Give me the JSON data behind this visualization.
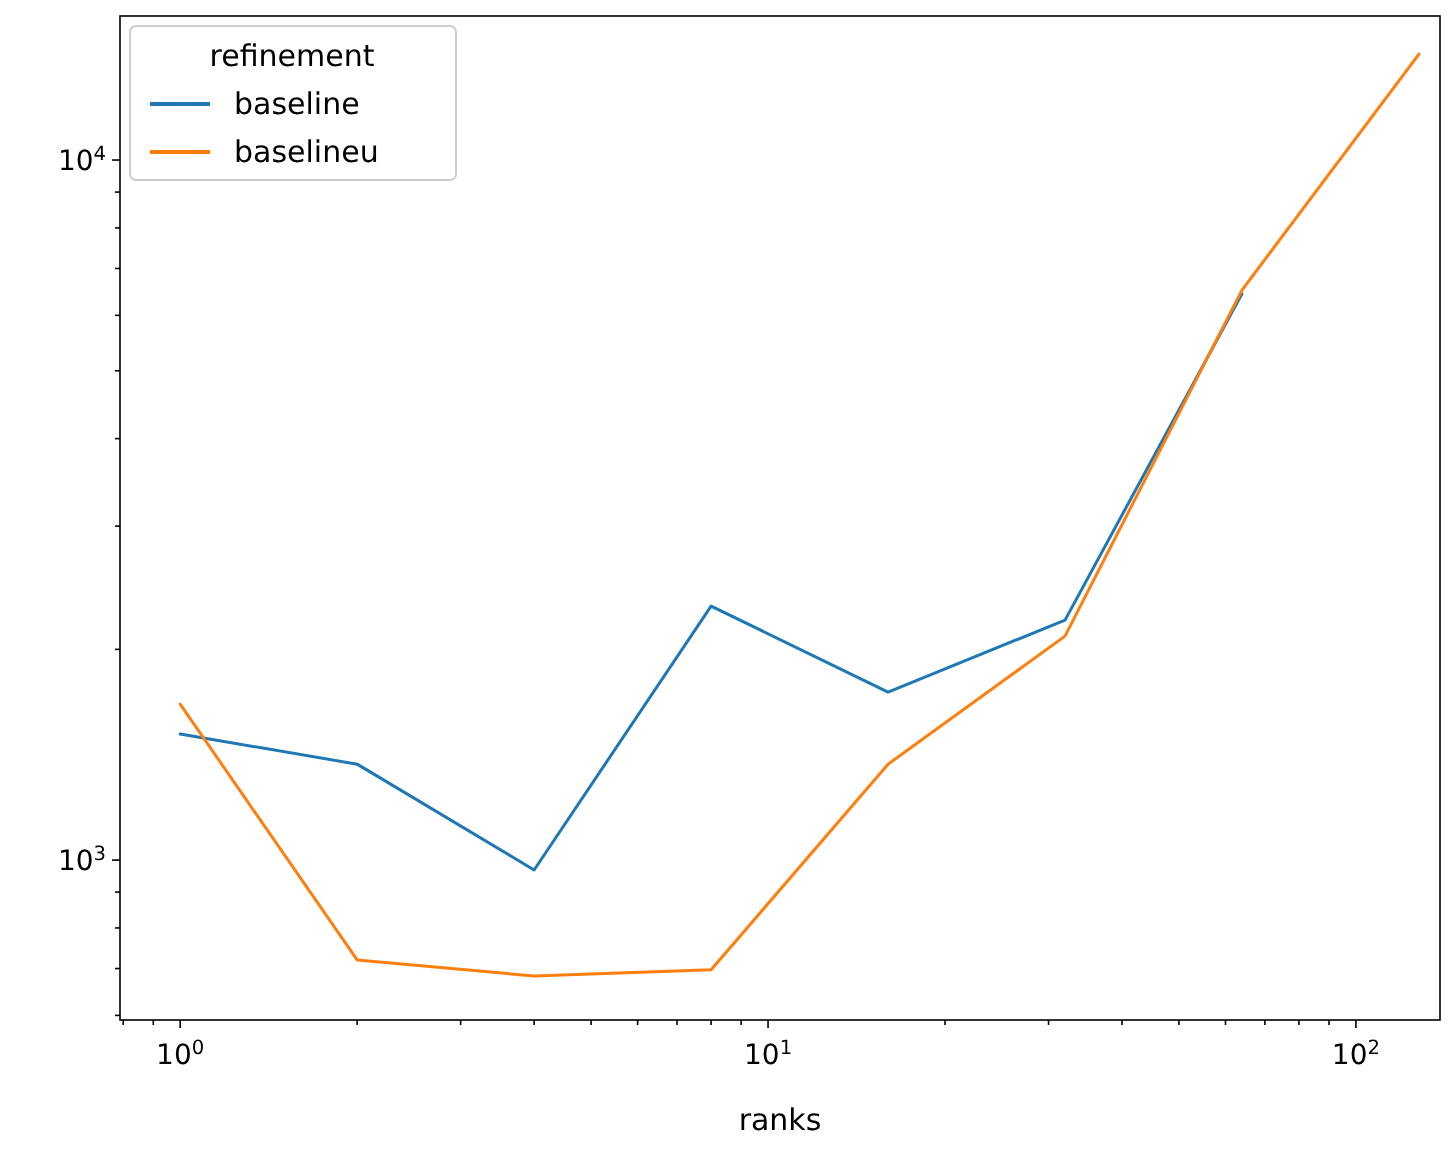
{
  "chart_data": {
    "type": "line",
    "xlabel": "ranks",
    "legend_title": "refinement",
    "legend": "top left",
    "log": "xy",
    "grid": false,
    "x": [
      1,
      2,
      4,
      8,
      16,
      32,
      64,
      128
    ],
    "xlim": [
      0.79,
      139
    ],
    "ylim": [
      591,
      16060
    ],
    "xticks": [
      {
        "value": 0.8,
        "label": null
      },
      {
        "value": 0.9,
        "label": null
      },
      {
        "value": 1,
        "label": "10$^{0}$"
      },
      {
        "value": 2,
        "label": null
      },
      {
        "value": 3,
        "label": null
      },
      {
        "value": 4,
        "label": null
      },
      {
        "value": 5,
        "label": null
      },
      {
        "value": 6,
        "label": null
      },
      {
        "value": 7,
        "label": null
      },
      {
        "value": 8,
        "label": null
      },
      {
        "value": 9,
        "label": null
      },
      {
        "value": 10,
        "label": "10$^{1}$"
      },
      {
        "value": 20,
        "label": null
      },
      {
        "value": 30,
        "label": null
      },
      {
        "value": 40,
        "label": null
      },
      {
        "value": 50,
        "label": null
      },
      {
        "value": 60,
        "label": null
      },
      {
        "value": 70,
        "label": null
      },
      {
        "value": 80,
        "label": null
      },
      {
        "value": 90,
        "label": null
      },
      {
        "value": 100,
        "label": "10$^{2}$"
      }
    ],
    "yticks": [
      {
        "value": 600,
        "label": null
      },
      {
        "value": 700,
        "label": null
      },
      {
        "value": 800,
        "label": null
      },
      {
        "value": 900,
        "label": null
      },
      {
        "value": 1000,
        "label": "10$^{3}$"
      },
      {
        "value": 2000,
        "label": null
      },
      {
        "value": 3000,
        "label": null
      },
      {
        "value": 4000,
        "label": null
      },
      {
        "value": 5000,
        "label": null
      },
      {
        "value": 6000,
        "label": null
      },
      {
        "value": 7000,
        "label": null
      },
      {
        "value": 8000,
        "label": null
      },
      {
        "value": 9000,
        "label": null
      },
      {
        "value": 10000,
        "label": "10$^{4}$"
      }
    ],
    "series": [
      {
        "name": "baseline",
        "color": "#1f77b4",
        "values": [
          1514,
          1371,
          968,
          2306,
          1738,
          2202,
          6440,
          null
        ]
      },
      {
        "name": "baselineu",
        "color": "#ff7f0e",
        "values": [
          1670,
          720,
          683,
          697,
          1371,
          2089,
          6520,
          14170
        ]
      }
    ]
  }
}
